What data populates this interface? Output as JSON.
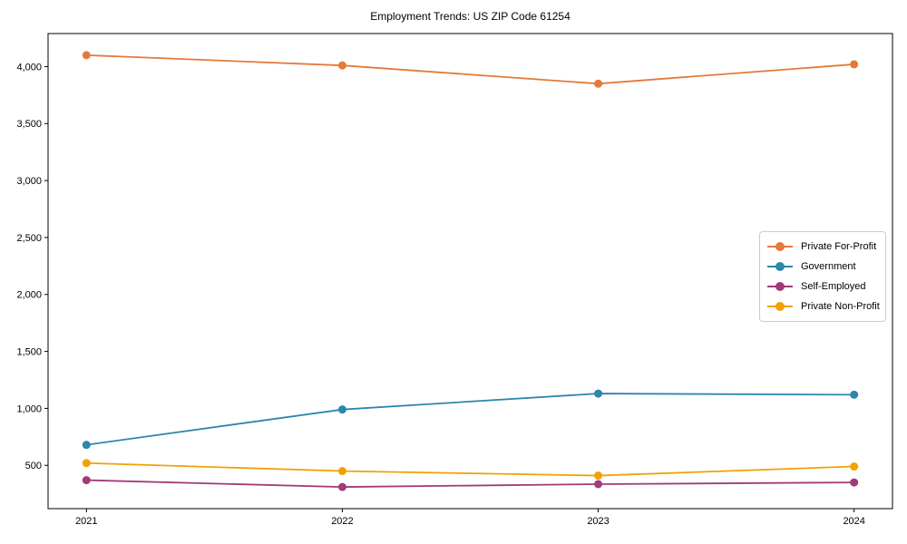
{
  "figure": {
    "background_color": "#ffffff",
    "frame_color": "#000000"
  },
  "chart_data": {
    "type": "line",
    "title": "Employment Trends: US ZIP Code 61254",
    "xlabel": "",
    "ylabel": "",
    "x": [
      2021,
      2022,
      2023,
      2024
    ],
    "xtick_labels": [
      "2021",
      "2022",
      "2023",
      "2024"
    ],
    "yticks": [
      500,
      1000,
      1500,
      2000,
      2500,
      3000,
      3500,
      4000
    ],
    "ytick_labels": [
      "500",
      "1,000",
      "1,500",
      "2,000",
      "2,500",
      "3,000",
      "3,500",
      "4,000"
    ],
    "xlim": [
      2020.85,
      2024.15
    ],
    "ylim": [
      120,
      4290
    ],
    "grid": false,
    "marker": "o",
    "legend_position": "center right",
    "series": [
      {
        "name": "Private For-Profit",
        "color": "#e5793a",
        "values": [
          4100,
          4010,
          3850,
          4020
        ]
      },
      {
        "name": "Government",
        "color": "#2e86ab",
        "values": [
          680,
          990,
          1130,
          1120
        ]
      },
      {
        "name": "Self-Employed",
        "color": "#a23b78",
        "values": [
          370,
          310,
          335,
          350
        ]
      },
      {
        "name": "Private Non-Profit",
        "color": "#f2a104",
        "values": [
          520,
          450,
          410,
          490
        ]
      }
    ]
  }
}
